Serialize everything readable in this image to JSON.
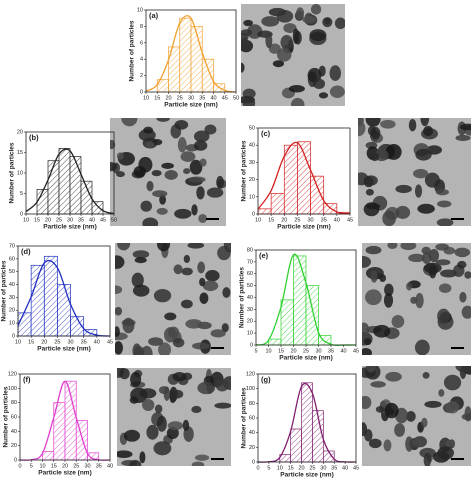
{
  "chart_data": [
    {
      "type": "histogram",
      "panel_label": "(a)",
      "x_label": "Particle size (nm)",
      "y_label": "Number of particles",
      "color": "#f0a030",
      "bins": [
        15,
        20,
        25,
        30,
        35,
        40,
        45
      ],
      "values": [
        1.5,
        5.5,
        9,
        8,
        4,
        1
      ],
      "xlim": [
        10,
        50
      ],
      "xticks": [
        10,
        15,
        20,
        25,
        30,
        35,
        40,
        45,
        50
      ],
      "ylim": [
        0,
        10
      ],
      "yticks": [
        0,
        2,
        4,
        6,
        8,
        10
      ],
      "fit": {
        "x": [
          10,
          15,
          20,
          25,
          30,
          35,
          40,
          45,
          50
        ],
        "y": [
          0.1,
          0.9,
          3.9,
          8.4,
          9,
          4.8,
          1.3,
          0.2,
          0
        ]
      }
    },
    {
      "type": "histogram",
      "panel_label": "(b)",
      "x_label": "Particle size (nm)",
      "y_label": "Number of particles",
      "color": "#222222",
      "bins": [
        15,
        20,
        25,
        30,
        35,
        40,
        45
      ],
      "values": [
        6,
        13,
        16,
        14,
        8,
        3
      ],
      "xlim": [
        10,
        50
      ],
      "xticks": [
        10,
        15,
        20,
        25,
        30,
        35,
        40,
        45,
        50
      ],
      "ylim": [
        0,
        20
      ],
      "yticks": [
        0,
        5,
        10,
        15,
        20
      ],
      "fit": {
        "x": [
          10,
          15,
          20,
          25,
          30,
          35,
          40,
          45,
          50
        ],
        "y": [
          0.6,
          2.9,
          8.3,
          14.6,
          15.4,
          9.7,
          3.7,
          0.8,
          0.1
        ]
      }
    },
    {
      "type": "histogram",
      "panel_label": "(c)",
      "x_label": "Particle size (nm)",
      "y_label": "Number of particles",
      "color": "#d42020",
      "bins": [
        10,
        15,
        20,
        25,
        30,
        35,
        40,
        45
      ],
      "values": [
        3,
        12,
        40,
        42,
        22,
        6,
        1
      ],
      "xlim": [
        10,
        45
      ],
      "xticks": [
        10,
        15,
        20,
        25,
        30,
        35,
        40,
        45
      ],
      "ylim": [
        0,
        50
      ],
      "yticks": [
        0,
        10,
        20,
        30,
        40,
        50
      ],
      "fit": {
        "x": [
          10,
          15,
          20,
          25,
          30,
          35,
          40,
          45
        ],
        "y": [
          2.8,
          13.6,
          33.6,
          41.4,
          25.5,
          7.8,
          1.2,
          0.1
        ]
      }
    },
    {
      "type": "histogram",
      "panel_label": "(d)",
      "x_label": "Particle size (nm)",
      "y_label": "Number of particles",
      "color": "#2030c0",
      "bins": [
        10,
        15,
        20,
        25,
        30,
        35,
        40
      ],
      "values": [
        18,
        55,
        62,
        40,
        15,
        5
      ],
      "xlim": [
        10,
        45
      ],
      "xticks": [
        10,
        15,
        20,
        25,
        30,
        35,
        40,
        45
      ],
      "ylim": [
        0,
        70
      ],
      "yticks": [
        0,
        10,
        20,
        30,
        40,
        50,
        60,
        70
      ],
      "fit": {
        "x": [
          10,
          15,
          20,
          25,
          30,
          35,
          40,
          45
        ],
        "y": [
          8.1,
          30.4,
          56.8,
          53,
          24.6,
          5.7,
          0.7,
          0
        ]
      }
    },
    {
      "type": "histogram",
      "panel_label": "(e)",
      "x_label": "Particle size (nm)",
      "y_label": "Number of particles",
      "color": "#30d030",
      "bins": [
        10,
        15,
        20,
        25,
        30,
        35
      ],
      "values": [
        5,
        38,
        75,
        50,
        8
      ],
      "xlim": [
        5,
        45
      ],
      "xticks": [
        5,
        10,
        15,
        20,
        25,
        30,
        35,
        40,
        45
      ],
      "ylim": [
        0,
        80
      ],
      "yticks": [
        0,
        10,
        20,
        30,
        40,
        50,
        60,
        70,
        80
      ],
      "fit": {
        "x": [
          5,
          10,
          15,
          20,
          25,
          30,
          35,
          40,
          45
        ],
        "y": [
          0,
          3.9,
          32,
          76,
          52.3,
          10.5,
          0.6,
          0,
          0
        ]
      }
    },
    {
      "type": "histogram",
      "panel_label": "(f)",
      "x_label": "Particle size (nm)",
      "y_label": "Number of particles",
      "color": "#e040d0",
      "bins": [
        10,
        15,
        20,
        25,
        30,
        35
      ],
      "values": [
        12,
        80,
        110,
        55,
        10
      ],
      "xlim": [
        0,
        40
      ],
      "xticks": [
        0,
        5,
        10,
        15,
        20,
        25,
        30,
        35,
        40
      ],
      "ylim": [
        0,
        120
      ],
      "yticks": [
        0,
        20,
        40,
        60,
        80,
        100,
        120
      ],
      "fit": {
        "x": [
          0,
          5,
          10,
          15,
          20,
          25,
          30,
          35,
          40
        ],
        "y": [
          0,
          0.4,
          9.3,
          59,
          110,
          59,
          9.3,
          0.4,
          0
        ]
      }
    },
    {
      "type": "histogram",
      "panel_label": "(g)",
      "x_label": "Particle size (nm)",
      "y_label": "Number of particles",
      "color": "#802070",
      "bins": [
        10,
        15,
        20,
        25,
        30,
        35
      ],
      "values": [
        10,
        45,
        108,
        70,
        15
      ],
      "xlim": [
        0,
        45
      ],
      "xticks": [
        0,
        5,
        10,
        15,
        20,
        25,
        30,
        35,
        40,
        45
      ],
      "ylim": [
        0,
        120
      ],
      "yticks": [
        0,
        20,
        40,
        60,
        80,
        100,
        120
      ],
      "fit": {
        "x": [
          0,
          5,
          10,
          15,
          20,
          25,
          30,
          35,
          40,
          45
        ],
        "y": [
          0,
          0.3,
          6.3,
          42,
          103,
          93.5,
          31,
          3.8,
          0.2,
          0
        ]
      }
    }
  ]
}
